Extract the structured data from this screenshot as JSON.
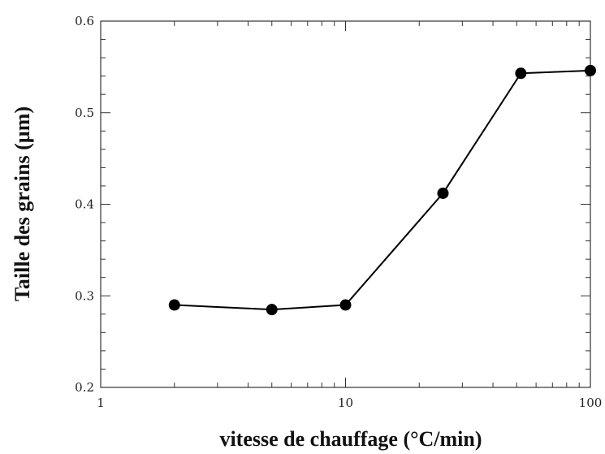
{
  "chart_data": {
    "type": "line",
    "title": "",
    "xlabel": "vitesse de chauffage (°C/min)",
    "ylabel": "Taille des grains (µm)",
    "xscale": "log",
    "xlim": [
      1,
      100
    ],
    "ylim": [
      0.2,
      0.6
    ],
    "x_ticks": [
      1,
      10,
      100
    ],
    "x_tick_labels": [
      "1",
      "10",
      "100"
    ],
    "y_ticks": [
      0.2,
      0.3,
      0.4,
      0.5,
      0.6
    ],
    "y_tick_labels": [
      "0.2",
      "0.3",
      "0.4",
      "0.5",
      "0.6"
    ],
    "grid": false,
    "series": [
      {
        "x": [
          2,
          5,
          10,
          25,
          52,
          100
        ],
        "y": [
          0.29,
          0.285,
          0.29,
          0.412,
          0.543,
          0.546
        ],
        "color": "#000000",
        "marker": "filled-circle"
      }
    ]
  }
}
